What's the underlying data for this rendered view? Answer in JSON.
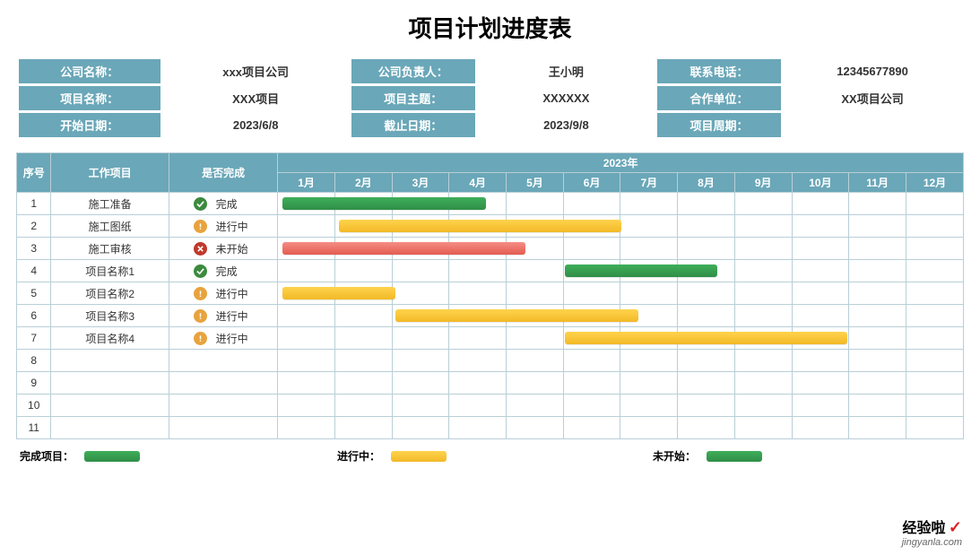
{
  "title": "项目计划进度表",
  "colors": {
    "header_bg": "#6aa7b8",
    "header_text": "#ffffff",
    "cell_border": "#b9cfd7",
    "done_bar": [
      "#3fae5a",
      "#2f8f47"
    ],
    "prog_bar": [
      "#ffd34d",
      "#f2b927"
    ],
    "not_bar": [
      "#f58e86",
      "#e45b50"
    ],
    "done_icon": "#3b8a3e",
    "prog_icon": "#e8a33d",
    "not_icon": "#c0392b"
  },
  "info": {
    "rows": [
      [
        {
          "label": "公司名称：",
          "value": "xxx项目公司"
        },
        {
          "label": "公司负责人：",
          "value": "王小明"
        },
        {
          "label": "联系电话：",
          "value": "12345677890"
        }
      ],
      [
        {
          "label": "项目名称：",
          "value": "XXX项目"
        },
        {
          "label": "项目主题：",
          "value": "XXXXXX"
        },
        {
          "label": "合作单位：",
          "value": "XX项目公司"
        }
      ],
      [
        {
          "label": "开始日期：",
          "value": "2023/6/8"
        },
        {
          "label": "截止日期：",
          "value": "2023/9/8"
        },
        {
          "label": "项目周期：",
          "value": ""
        }
      ]
    ]
  },
  "gantt": {
    "headers": {
      "seq": "序号",
      "task": "工作项目",
      "status": "是否完成",
      "year": "2023年"
    },
    "months": [
      "1月",
      "2月",
      "3月",
      "4月",
      "5月",
      "6月",
      "7月",
      "8月",
      "9月",
      "10月",
      "11月",
      "12月"
    ],
    "status_labels": {
      "done": "完成",
      "progress": "进行中",
      "notstarted": "未开始"
    },
    "rows": [
      {
        "seq": "1",
        "task": "施工准备",
        "status": "done",
        "bar": {
          "start": 1,
          "end": 4.6,
          "style": "done"
        }
      },
      {
        "seq": "2",
        "task": "施工图纸",
        "status": "progress",
        "bar": {
          "start": 2,
          "end": 7.0,
          "style": "prog"
        }
      },
      {
        "seq": "3",
        "task": "施工审核",
        "status": "notstarted",
        "bar": {
          "start": 1,
          "end": 5.3,
          "style": "not"
        }
      },
      {
        "seq": "4",
        "task": "项目名称1",
        "status": "done",
        "bar": {
          "start": 6,
          "end": 8.7,
          "style": "done"
        }
      },
      {
        "seq": "5",
        "task": "项目名称2",
        "status": "progress",
        "bar": {
          "start": 1,
          "end": 3.0,
          "style": "prog"
        }
      },
      {
        "seq": "6",
        "task": "项目名称3",
        "status": "progress",
        "bar": {
          "start": 3,
          "end": 7.3,
          "style": "prog"
        }
      },
      {
        "seq": "7",
        "task": "项目名称4",
        "status": "progress",
        "bar": {
          "start": 6,
          "end": 11.0,
          "style": "prog"
        }
      },
      {
        "seq": "8"
      },
      {
        "seq": "9"
      },
      {
        "seq": "10"
      },
      {
        "seq": "11"
      }
    ]
  },
  "legend": {
    "done_label": "完成项目：",
    "progress_label": "进行中：",
    "notstarted_label": "未开始："
  },
  "watermark": {
    "line1": "经验啦",
    "check": "✓",
    "line2": "jingyanla.com"
  }
}
